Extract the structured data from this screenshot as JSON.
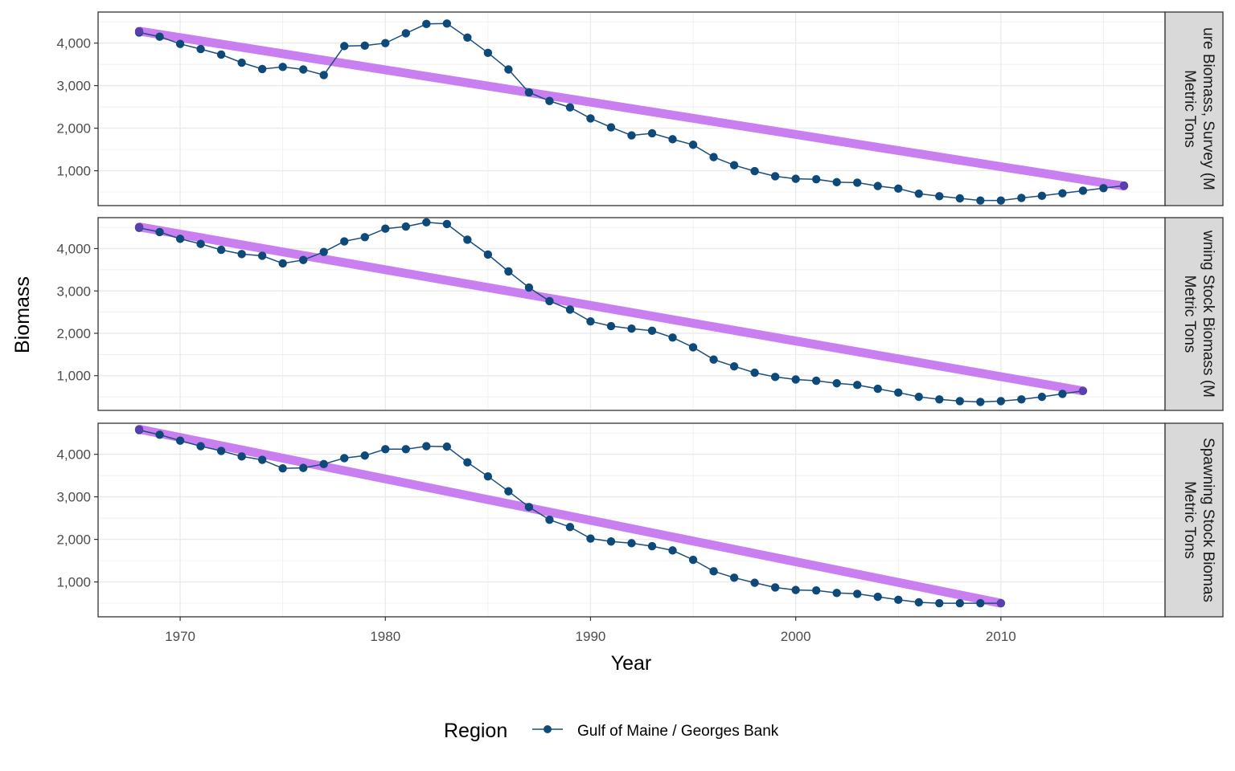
{
  "chart_data": {
    "type": "line",
    "xlabel": "Year",
    "ylabel": "Biomass",
    "xlim": [
      1966,
      2018
    ],
    "ylim": [
      180,
      4730
    ],
    "x_ticks": [
      1970,
      1980,
      1990,
      2000,
      2010
    ],
    "y_ticks": [
      1000,
      2000,
      3000,
      4000
    ],
    "y_tick_labels": [
      "1,000",
      "2,000",
      "3,000",
      "4,000"
    ],
    "grid": true,
    "legend": {
      "title": "Region",
      "position": "bottom",
      "entries": [
        "Gulf of Maine / Georges Bank"
      ]
    },
    "colors": {
      "series": "#1a4e7c",
      "point": "#0d4a7a",
      "trend": "#c97ff0",
      "strip": "#d9d9d9",
      "grid": "#ebebeb",
      "endpoint": "#5b3fb0"
    },
    "panels": [
      {
        "strip_label": [
          "ure Biomass, Survey (M",
          "Metric Tons"
        ],
        "series": [
          {
            "name": "Gulf of Maine / Georges Bank",
            "x": [
              1968,
              1969,
              1970,
              1971,
              1972,
              1973,
              1974,
              1975,
              1976,
              1977,
              1978,
              1979,
              1980,
              1981,
              1982,
              1983,
              1984,
              1985,
              1986,
              1987,
              1988,
              1989,
              1990,
              1991,
              1992,
              1993,
              1994,
              1995,
              1996,
              1997,
              1998,
              1999,
              2000,
              2001,
              2002,
              2003,
              2004,
              2005,
              2006,
              2007,
              2008,
              2009,
              2010,
              2011,
              2012,
              2013,
              2014,
              2015,
              2016
            ],
            "values": [
              4250,
              4150,
              3980,
              3860,
              3730,
              3540,
              3390,
              3440,
              3380,
              3250,
              3930,
              3940,
              4000,
              4230,
              4450,
              4460,
              4130,
              3770,
              3380,
              2840,
              2640,
              2490,
              2230,
              2020,
              1830,
              1880,
              1740,
              1610,
              1320,
              1130,
              990,
              870,
              810,
              800,
              730,
              720,
              640,
              580,
              460,
              400,
              350,
              300,
              300,
              360,
              410,
              470,
              530,
              590,
              650
            ]
          }
        ],
        "trend": {
          "x": [
            1968,
            2016
          ],
          "y": [
            4280,
            640
          ]
        }
      },
      {
        "strip_label": [
          "wning Stock Biomass (M",
          "Metric Tons"
        ],
        "series": [
          {
            "name": "Gulf of Maine / Georges Bank",
            "x": [
              1968,
              1969,
              1970,
              1971,
              1972,
              1973,
              1974,
              1975,
              1976,
              1977,
              1978,
              1979,
              1980,
              1981,
              1982,
              1983,
              1984,
              1985,
              1986,
              1987,
              1988,
              1989,
              1990,
              1991,
              1992,
              1993,
              1994,
              1995,
              1996,
              1997,
              1998,
              1999,
              2000,
              2001,
              2002,
              2003,
              2004,
              2005,
              2006,
              2007,
              2008,
              2009,
              2010,
              2011,
              2012,
              2013,
              2014
            ],
            "values": [
              4490,
              4390,
              4230,
              4110,
              3970,
              3870,
              3830,
              3650,
              3730,
              3920,
              4170,
              4270,
              4470,
              4520,
              4620,
              4580,
              4210,
              3860,
              3460,
              3080,
              2760,
              2560,
              2280,
              2170,
              2110,
              2060,
              1900,
              1670,
              1380,
              1220,
              1070,
              970,
              910,
              880,
              820,
              780,
              690,
              600,
              500,
              440,
              400,
              380,
              400,
              440,
              500,
              570,
              640
            ]
          }
        ],
        "trend": {
          "x": [
            1968,
            2014
          ],
          "y": [
            4510,
            640
          ]
        }
      },
      {
        "strip_label": [
          "Spawning Stock Biomas",
          "Metric Tons"
        ],
        "series": [
          {
            "name": "Gulf of Maine / Georges Bank",
            "x": [
              1968,
              1969,
              1970,
              1971,
              1972,
              1973,
              1974,
              1975,
              1976,
              1977,
              1978,
              1979,
              1980,
              1981,
              1982,
              1983,
              1984,
              1985,
              1986,
              1987,
              1988,
              1989,
              1990,
              1991,
              1992,
              1993,
              1994,
              1995,
              1996,
              1997,
              1998,
              1999,
              2000,
              2001,
              2002,
              2003,
              2004,
              2005,
              2006,
              2007,
              2008,
              2009,
              2010
            ],
            "values": [
              4570,
              4460,
              4320,
              4190,
              4080,
              3950,
              3870,
              3670,
              3680,
              3770,
              3910,
              3970,
              4120,
              4120,
              4190,
              4180,
              3810,
              3480,
              3130,
              2760,
              2460,
              2290,
              2020,
              1950,
              1910,
              1840,
              1740,
              1520,
              1250,
              1100,
              980,
              870,
              810,
              800,
              740,
              720,
              650,
              580,
              520,
              500,
              500,
              500,
              500
            ]
          }
        ],
        "trend": {
          "x": [
            1968,
            2010
          ],
          "y": [
            4590,
            500
          ]
        }
      }
    ]
  }
}
